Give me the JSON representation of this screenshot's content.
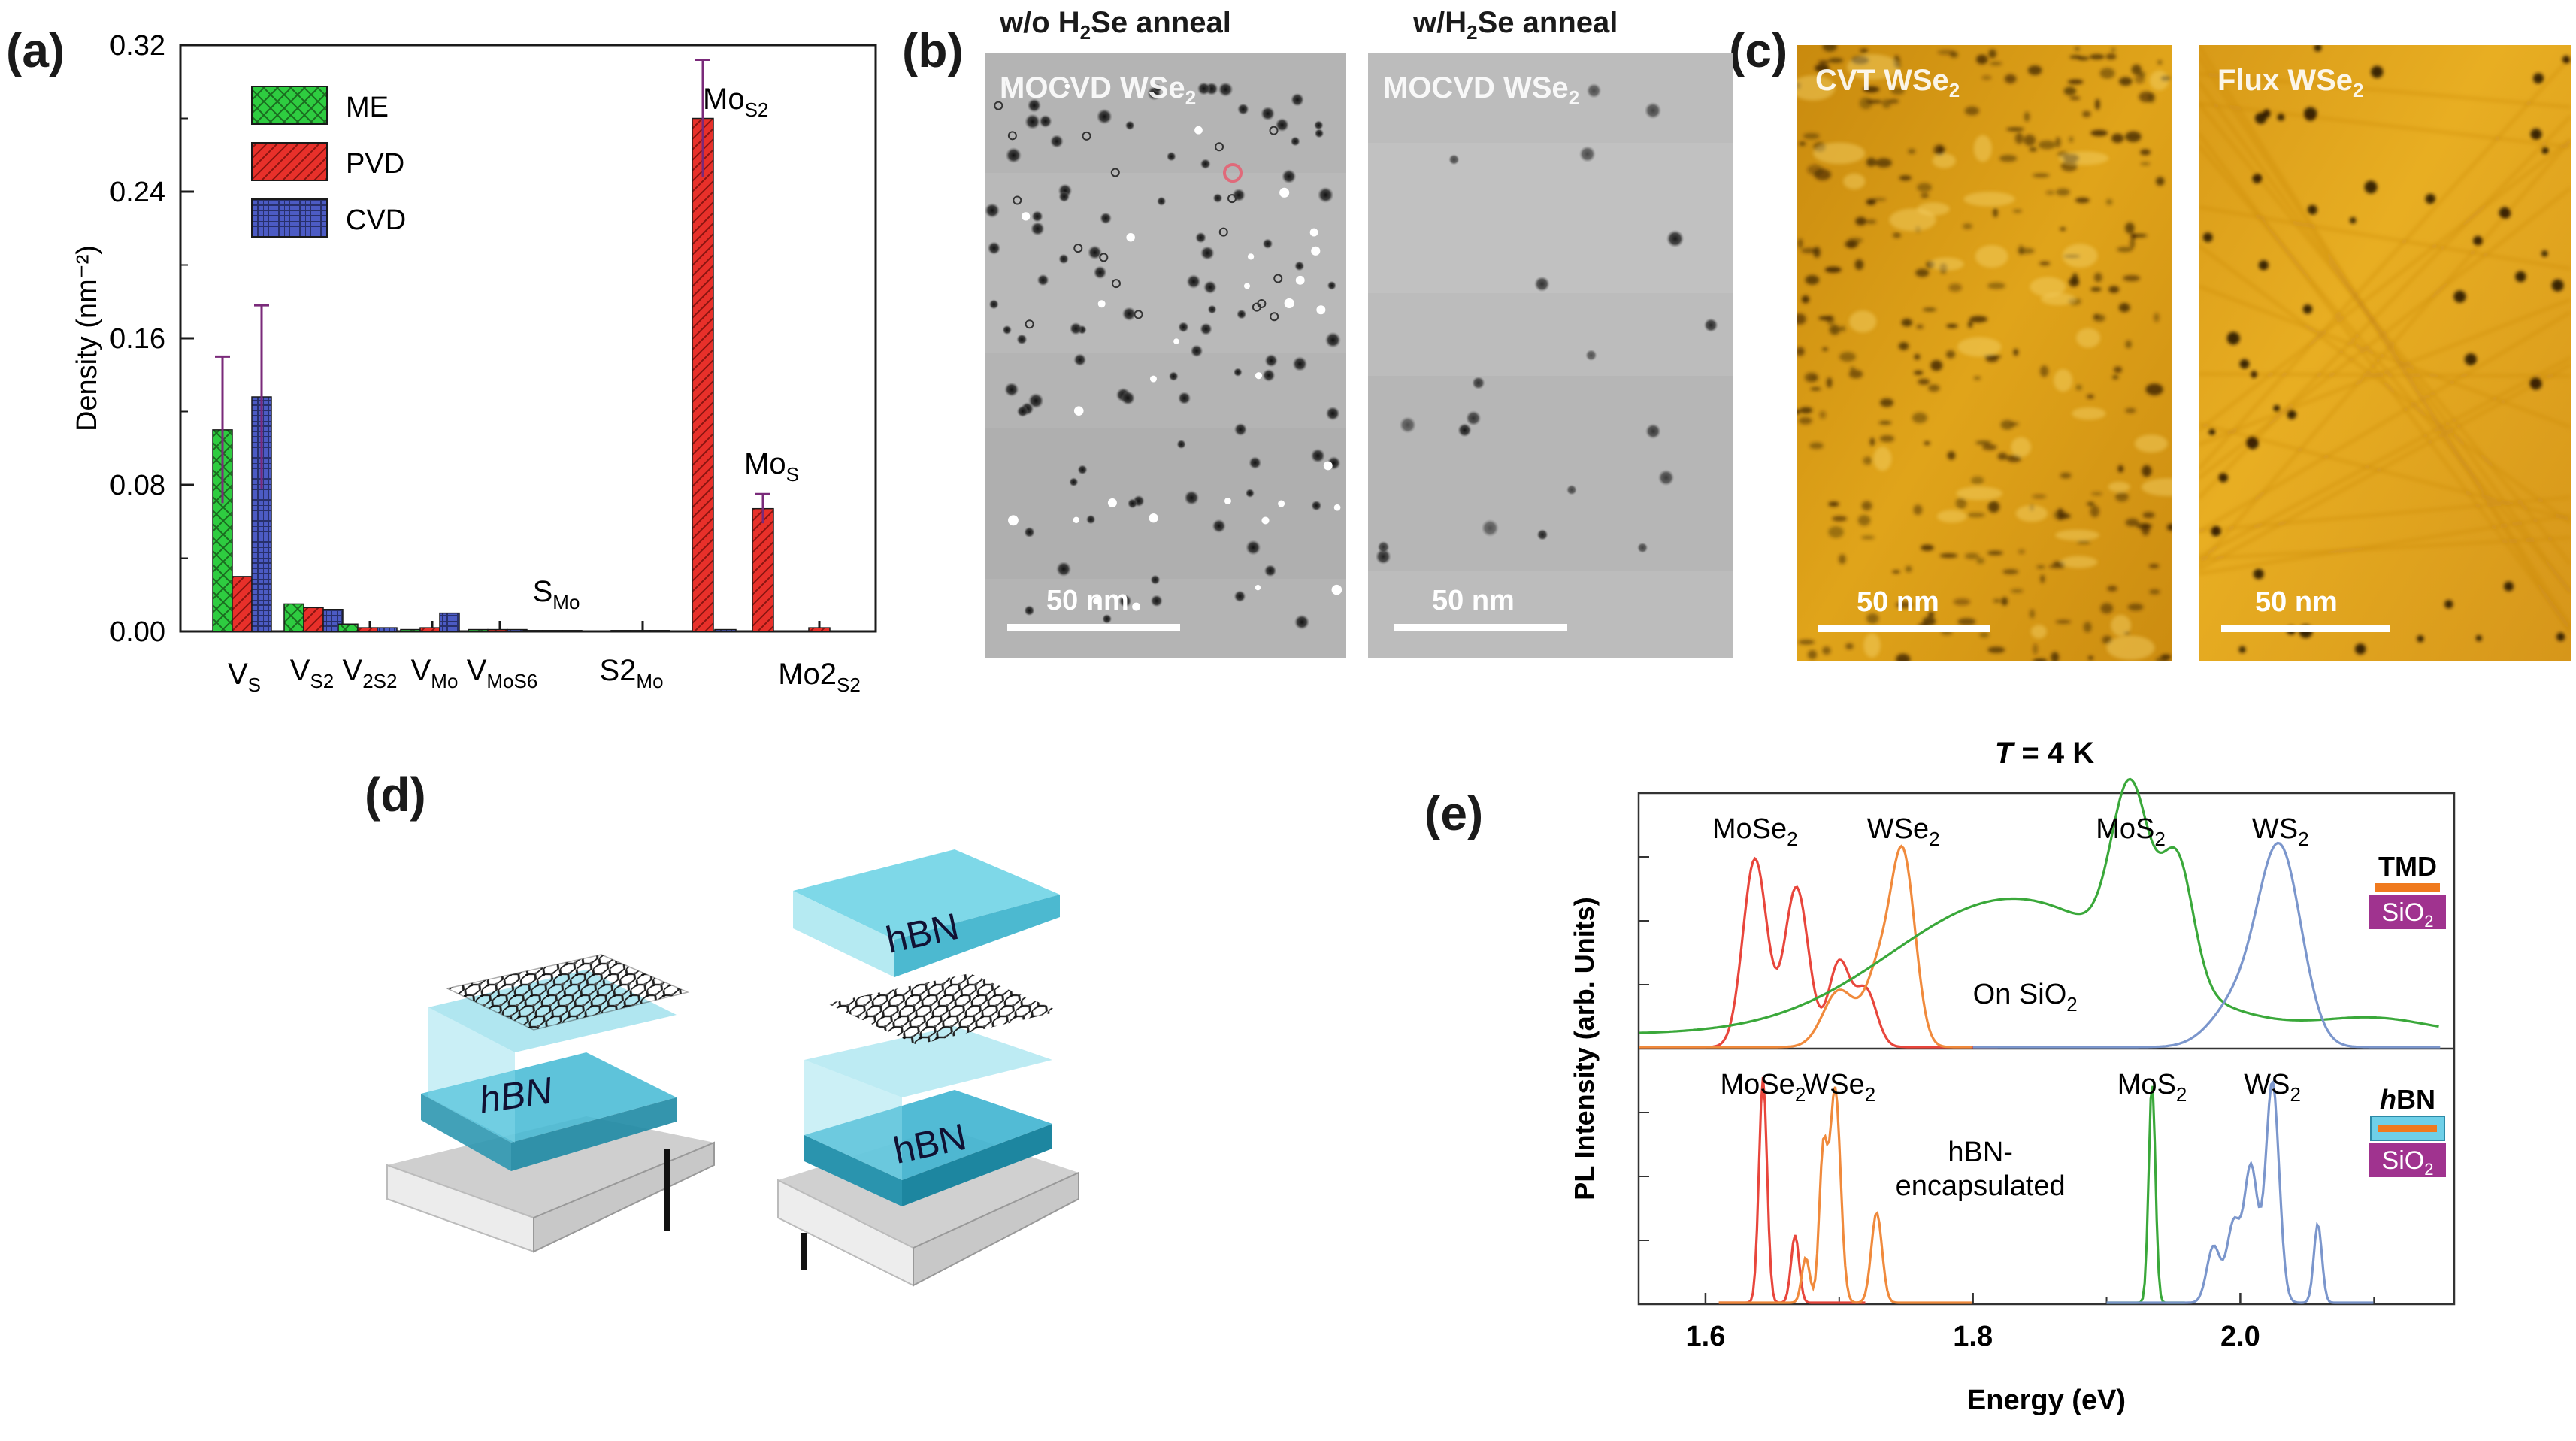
{
  "panels": {
    "a": "(a)",
    "b": "(b)",
    "c": "(c)",
    "d": "(d)",
    "e": "(e)"
  },
  "chart_data": [
    {
      "type": "bar",
      "panel": "(a)",
      "title": "",
      "xlabel": "",
      "ylabel": "Density (nm⁻²)",
      "ylim": [
        0,
        0.32
      ],
      "yticks": [
        "0.00",
        "0.08",
        "0.16",
        "0.24",
        "0.32"
      ],
      "categories": [
        "VS",
        "VS2",
        "V2S2",
        "VMo",
        "VMoS6",
        "SMo",
        "S2Mo",
        "MoS2",
        "MoS",
        "Mo2S2"
      ],
      "category_labels": [
        {
          "base": "V",
          "sub": "S"
        },
        {
          "base": "V",
          "sub": "S2"
        },
        {
          "base": "V",
          "sub": "2S2"
        },
        {
          "base": "V",
          "sub": "Mo"
        },
        {
          "base": "V",
          "sub": "MoS6"
        },
        {
          "base": "S",
          "sub": "Mo"
        },
        {
          "base": "S2",
          "sub": "Mo"
        },
        {
          "base": "Mo",
          "sub": "S2"
        },
        {
          "base": "Mo",
          "sub": "S"
        },
        {
          "base": "Mo2",
          "sub": "S2"
        }
      ],
      "series": [
        {
          "name": "ME",
          "color": "#2ecc40",
          "values": [
            0.11,
            0.015,
            0.004,
            0.001,
            0.001,
            0.0005,
            0.0005,
            0.0,
            0.0,
            0.0
          ],
          "errors": [
            0.04,
            0,
            0,
            0,
            0,
            0,
            0,
            0,
            0,
            0
          ]
        },
        {
          "name": "PVD",
          "color": "#e8302a",
          "values": [
            0.03,
            0.013,
            0.002,
            0.002,
            0.001,
            0.0005,
            0.0005,
            0.28,
            0.067,
            0.002
          ],
          "errors": [
            0,
            0,
            0,
            0,
            0,
            0,
            0,
            0.032,
            0.008,
            0
          ]
        },
        {
          "name": "CVD",
          "color": "#4c5bc4",
          "values": [
            0.128,
            0.012,
            0.002,
            0.01,
            0.001,
            0.0005,
            0.0005,
            0.001,
            0.0,
            0.0
          ],
          "errors": [
            0.05,
            0,
            0,
            0,
            0,
            0,
            0,
            0,
            0,
            0
          ]
        }
      ],
      "legend": "top-left"
    },
    {
      "type": "line",
      "panel": "(e)",
      "title": "T = 4 K",
      "title_parts": {
        "T": "T",
        "rest": " = 4 K"
      },
      "xlabel": "Energy (eV)",
      "ylabel": "PL Intensity (arb. Units)",
      "xlim": [
        1.55,
        2.16
      ],
      "xticks": [
        "1.6",
        "1.8",
        "2.0"
      ],
      "subplots": [
        {
          "annotation": "On SiO2",
          "annotation_parts": {
            "base": "On SiO",
            "sub": "2"
          },
          "inset": {
            "top": "TMD",
            "bottom_base": "SiO",
            "bottom_sub": "2"
          },
          "peak_labels": [
            {
              "base": "MoSe",
              "sub": "2"
            },
            {
              "base": "WSe",
              "sub": "2"
            },
            {
              "base": "MoS",
              "sub": "2"
            },
            {
              "base": "WS",
              "sub": "2"
            }
          ],
          "series": [
            {
              "name": "MoSe2",
              "color": "#e8463c",
              "peaks": [
                [
                  1.637,
                  1.0,
                  0.009
                ],
                [
                  1.668,
                  0.85,
                  0.009
                ],
                [
                  1.7,
                  0.45,
                  0.008
                ],
                [
                  1.72,
                  0.3,
                  0.008
                ]
              ]
            },
            {
              "name": "WSe2",
              "color": "#f08a3c",
              "peaks": [
                [
                  1.748,
                  0.98,
                  0.009
                ],
                [
                  1.73,
                  0.4,
                  0.01
                ],
                [
                  1.7,
                  0.3,
                  0.012
                ]
              ]
            },
            {
              "name": "MoS2",
              "color": "#3aa83a",
              "peaks": [
                [
                  1.83,
                  0.72,
                  0.09
                ],
                [
                  1.918,
                  0.9,
                  0.014
                ],
                [
                  1.953,
                  0.65,
                  0.012
                ],
                [
                  2.1,
                  0.08,
                  0.04
                ]
              ]
            },
            {
              "name": "WS2",
              "color": "#7b96cc",
              "peaks": [
                [
                  2.03,
                  1.0,
                  0.016
                ],
                [
                  2.0,
                  0.25,
                  0.02
                ]
              ]
            }
          ]
        },
        {
          "annotation": "hBN-\nencapsulated",
          "annotation_lines": [
            "hBN-",
            "encapsulated"
          ],
          "inset": {
            "top": "hBN",
            "bottom_base": "SiO",
            "bottom_sub": "2"
          },
          "peak_labels": [
            {
              "base": "MoSe",
              "sub": "2"
            },
            {
              "base": "WSe",
              "sub": "2"
            },
            {
              "base": "MoS",
              "sub": "2"
            },
            {
              "base": "WS",
              "sub": "2"
            }
          ],
          "series": [
            {
              "name": "MoSe2",
              "color": "#e8463c",
              "peaks": [
                [
                  1.643,
                  1.0,
                  0.003
                ],
                [
                  1.667,
                  0.3,
                  0.003
                ]
              ]
            },
            {
              "name": "WSe2",
              "color": "#f08a3c",
              "peaks": [
                [
                  1.697,
                  0.95,
                  0.004
                ],
                [
                  1.688,
                  0.65,
                  0.003
                ],
                [
                  1.728,
                  0.4,
                  0.004
                ],
                [
                  1.675,
                  0.2,
                  0.003
                ]
              ]
            },
            {
              "name": "MoS2",
              "color": "#3aa83a",
              "peaks": [
                [
                  1.934,
                  0.98,
                  0.0025
                ]
              ]
            },
            {
              "name": "WS2",
              "color": "#7b96cc",
              "peaks": [
                [
                  2.024,
                  0.98,
                  0.005
                ],
                [
                  2.008,
                  0.6,
                  0.005
                ],
                [
                  1.995,
                  0.35,
                  0.005
                ],
                [
                  1.98,
                  0.25,
                  0.005
                ],
                [
                  2.058,
                  0.35,
                  0.003
                ]
              ]
            }
          ]
        }
      ]
    }
  ],
  "panel_b": {
    "left_title": {
      "pre": "w/o H",
      "sub": "2",
      "post": "Se anneal"
    },
    "right_title": {
      "pre": "w/H",
      "sub": "2",
      "post": "Se anneal"
    },
    "left_label": {
      "base": "MOCVD WSe",
      "sub": "2"
    },
    "right_label": {
      "base": "MOCVD WSe",
      "sub": "2"
    },
    "scale_left": "50 nm",
    "scale_right": "50 nm"
  },
  "panel_c": {
    "left_label": {
      "base": "CVT WSe",
      "sub": "2"
    },
    "right_label": {
      "base": "Flux WSe",
      "sub": "2"
    },
    "scale_left": "50 nm",
    "scale_right": "50 nm"
  },
  "panel_d": {
    "left_layer": "hBN",
    "right_top_layer": "hBN",
    "right_bottom_layer": "hBN"
  },
  "colors": {
    "stm_gray": "#b9b9b9",
    "afm_gold": "#d99a14",
    "hbn_cyan": "#55c8dc",
    "substrate": "#d4d4d4"
  }
}
